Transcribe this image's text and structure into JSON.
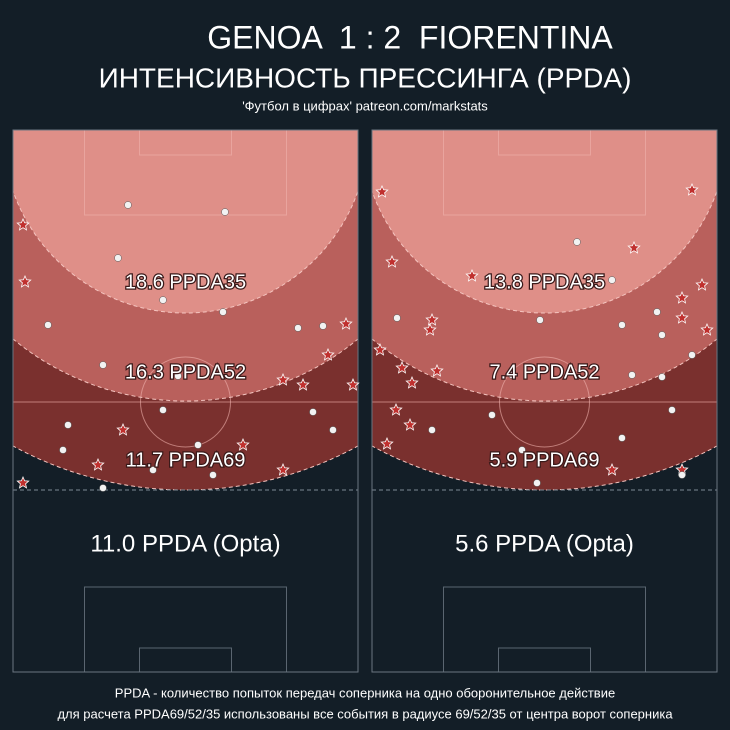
{
  "header": {
    "title": "GENOA  1 : 2  FIORENTINA",
    "subtitle": "ИНТЕНСИВНОСТЬ ПРЕССИНГА (PPDA)",
    "credit": "'Футбол в цифрах' patreon.com/markstats"
  },
  "panels": [
    {
      "zones": [
        "18.6 PPDA35",
        "16.3 PPDA52",
        "11.7 PPDA69"
      ],
      "opta": "11.0 PPDA (Opta)"
    },
    {
      "zones": [
        "13.8 PPDA35",
        "7.4 PPDA52",
        "5.9 PPDA69"
      ],
      "opta": "5.6 PPDA (Opta)"
    }
  ],
  "footer": [
    "PPDA - количество попыток передач соперника на одно оборонительное действие",
    "для расчета PPDA69/52/35 использованы все события в радиусе 69/52/35 от центра ворот соперника"
  ]
}
